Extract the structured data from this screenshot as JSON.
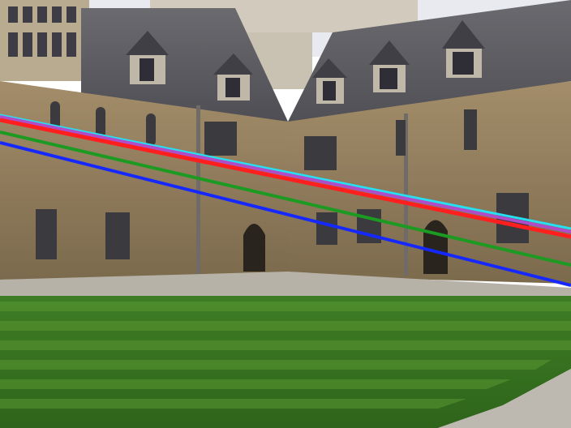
{
  "image": {
    "kind": "photograph",
    "subject": "quadrangle-with-lawn-and-stone-building"
  },
  "overlay_lines": {
    "colors": {
      "cyan": "#26e0f2",
      "magenta": "#b14cc9",
      "red": "#ff1f1f",
      "green": "#1c9a22",
      "blue": "#1428ff"
    },
    "count": 5
  },
  "palette": {
    "sky": "#e8eaf0",
    "stone": "#9b8462",
    "stone_dark": "#6e5b40",
    "roof": "#5f5f63",
    "lawn_light": "#4f8a2a",
    "lawn_dark": "#2f6a1d",
    "path": "#b7b2a8"
  }
}
